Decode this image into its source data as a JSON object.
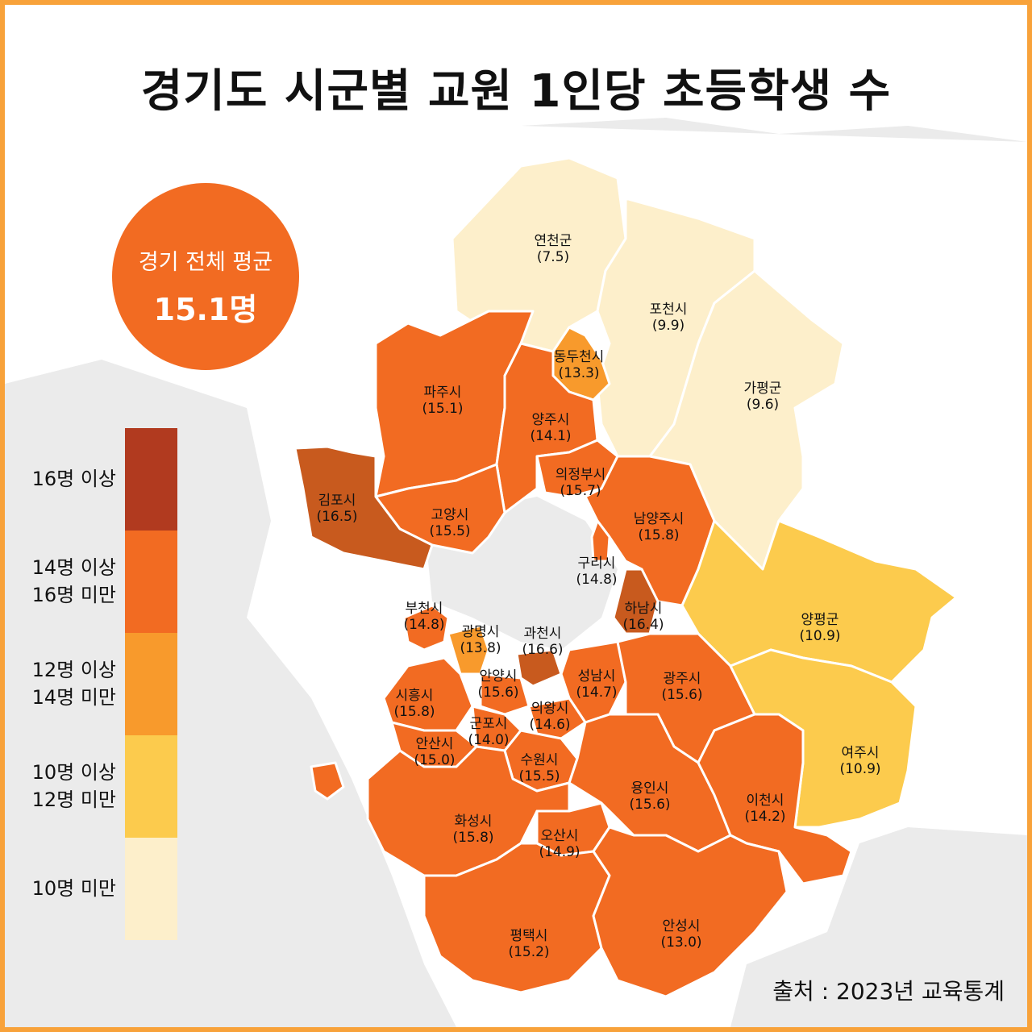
{
  "title": "경기도 시군별 교원 1인당 초등학생 수",
  "average": {
    "label": "경기 전체 평균",
    "value": "15.1명"
  },
  "legend": [
    {
      "line1": "16명 이상",
      "line2": "",
      "color": "#b13a1f"
    },
    {
      "line1": "14명 이상",
      "line2": "16명 미만",
      "color": "#f26b22"
    },
    {
      "line1": "12명 이상",
      "line2": "14명 미만",
      "color": "#f89a2c"
    },
    {
      "line1": "10명 이상",
      "line2": "12명 미만",
      "color": "#fccb4d"
    },
    {
      "line1": "10명 미만",
      "line2": "",
      "color": "#fdefcb"
    }
  ],
  "regions": [
    {
      "name": "연천군",
      "value": "(7.5)"
    },
    {
      "name": "포천시",
      "value": "(9.9)"
    },
    {
      "name": "동두천시",
      "value": "(13.3)"
    },
    {
      "name": "가평군",
      "value": "(9.6)"
    },
    {
      "name": "파주시",
      "value": "(15.1)"
    },
    {
      "name": "양주시",
      "value": "(14.1)"
    },
    {
      "name": "의정부시",
      "value": "(15.7)"
    },
    {
      "name": "김포시",
      "value": "(16.5)"
    },
    {
      "name": "고양시",
      "value": "(15.5)"
    },
    {
      "name": "남양주시",
      "value": "(15.8)"
    },
    {
      "name": "구리시",
      "value": "(14.8)"
    },
    {
      "name": "하남시",
      "value": "(16.4)"
    },
    {
      "name": "양평군",
      "value": "(10.9)"
    },
    {
      "name": "부천시",
      "value": "(14.8)"
    },
    {
      "name": "광명시",
      "value": "(13.8)"
    },
    {
      "name": "과천시",
      "value": "(16.6)"
    },
    {
      "name": "안양시",
      "value": "(15.6)"
    },
    {
      "name": "성남시",
      "value": "(14.7)"
    },
    {
      "name": "광주시",
      "value": "(15.6)"
    },
    {
      "name": "시흥시",
      "value": "(15.8)"
    },
    {
      "name": "의왕시",
      "value": "(14.6)"
    },
    {
      "name": "군포시",
      "value": "(14.0)"
    },
    {
      "name": "안산시",
      "value": "(15.0)"
    },
    {
      "name": "수원시",
      "value": "(15.5)"
    },
    {
      "name": "여주시",
      "value": "(10.9)"
    },
    {
      "name": "용인시",
      "value": "(15.6)"
    },
    {
      "name": "이천시",
      "value": "(14.2)"
    },
    {
      "name": "화성시",
      "value": "(15.8)"
    },
    {
      "name": "오산시",
      "value": "(14.9)"
    },
    {
      "name": "평택시",
      "value": "(15.2)"
    },
    {
      "name": "안성시",
      "value": "(13.0)"
    }
  ],
  "source": "출처 : 2023년 교육통계"
}
